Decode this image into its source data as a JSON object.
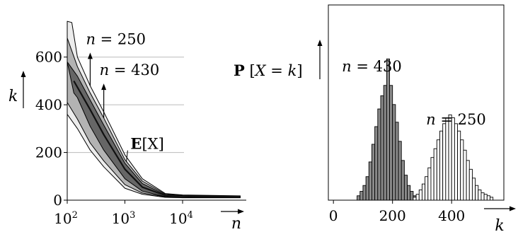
{
  "chart_data": [
    {
      "type": "area",
      "xlabel": "n",
      "ylabel": "k",
      "x_scale": "log",
      "xlim": [
        100,
        120000
      ],
      "ylim": [
        0,
        780
      ],
      "x_ticks": [
        {
          "value": 100,
          "base": "10",
          "exp": "2"
        },
        {
          "value": 1000,
          "base": "10",
          "exp": "3"
        },
        {
          "value": 10000,
          "base": "10",
          "exp": "4"
        }
      ],
      "y_ticks": [
        {
          "value": 0,
          "label": "0"
        },
        {
          "value": 200,
          "label": "200"
        },
        {
          "value": 400,
          "label": "400"
        },
        {
          "value": 600,
          "label": "600"
        }
      ],
      "grid": {
        "y_values": [
          200,
          400,
          600
        ]
      },
      "series": [
        {
          "name": "E[X]",
          "label_bold": "E",
          "label_rest": "[X]",
          "label_at": {
            "x": 1400,
            "y": 250
          },
          "mean": [
            [
              130,
              500
            ],
            [
              250,
              380
            ],
            [
              430,
              275
            ],
            [
              1000,
              130
            ],
            [
              2000,
              55
            ],
            [
              5000,
              20
            ],
            [
              20000,
              15
            ],
            [
              100000,
              15
            ]
          ],
          "bands": [
            {
              "level": "outer",
              "upper": [
                [
                  100,
                  750
                ],
                [
                  120,
                  745
                ],
                [
                  150,
                  600
                ],
                [
                  250,
                  480
                ],
                [
                  430,
                  370
                ],
                [
                  1000,
                  190
                ],
                [
                  2000,
                  90
                ],
                [
                  5000,
                  28
                ],
                [
                  10000,
                  22
                ],
                [
                  100000,
                  18
                ]
              ],
              "lower": [
                [
                  100,
                  360
                ],
                [
                  150,
                  300
                ],
                [
                  250,
                  210
                ],
                [
                  430,
                  140
                ],
                [
                  1000,
                  50
                ],
                [
                  2000,
                  25
                ],
                [
                  5000,
                  12
                ],
                [
                  10000,
                  10
                ],
                [
                  100000,
                  10
                ]
              ]
            },
            {
              "level": "middle",
              "upper": [
                [
                  100,
                  680
                ],
                [
                  150,
                  560
                ],
                [
                  250,
                  450
                ],
                [
                  430,
                  345
                ],
                [
                  1000,
                  170
                ],
                [
                  2000,
                  80
                ],
                [
                  5000,
                  25
                ],
                [
                  10000,
                  20
                ],
                [
                  100000,
                  17
                ]
              ],
              "lower": [
                [
                  100,
                  410
                ],
                [
                  150,
                  340
                ],
                [
                  250,
                  240
                ],
                [
                  430,
                  165
                ],
                [
                  1000,
                  65
                ],
                [
                  2000,
                  30
                ],
                [
                  5000,
                  14
                ],
                [
                  10000,
                  11
                ],
                [
                  100000,
                  11
                ]
              ]
            },
            {
              "level": "inner",
              "upper": [
                [
                  100,
                  580
                ],
                [
                  150,
                  520
                ],
                [
                  250,
                  420
                ],
                [
                  430,
                  315
                ],
                [
                  1000,
                  155
                ],
                [
                  2000,
                  70
                ],
                [
                  5000,
                  22
                ],
                [
                  10000,
                  18
                ],
                [
                  100000,
                  16
                ]
              ],
              "lower": [
                [
                  130,
                  450
                ],
                [
                  150,
                  430
                ],
                [
                  250,
                  310
                ],
                [
                  430,
                  210
                ],
                [
                  1000,
                  90
                ],
                [
                  2000,
                  38
                ],
                [
                  5000,
                  15
                ],
                [
                  10000,
                  12
                ],
                [
                  100000,
                  12
                ]
              ]
            }
          ]
        }
      ],
      "annotations": [
        {
          "text_var": "n",
          "text_rest": " = 250",
          "x": 250,
          "y": 480,
          "at": 610
        },
        {
          "text_var": "n",
          "text_rest": " = 430",
          "x": 430,
          "y": 345,
          "at": 480
        }
      ]
    },
    {
      "type": "bar",
      "title_bold": "P",
      "title_var": "X",
      "title_var2": "k",
      "ylabel": "P[X = k]",
      "xlabel": "k",
      "xlim": [
        -10,
        560
      ],
      "ylim": [
        0,
        1
      ],
      "x_ticks": [
        {
          "value": 0,
          "label": "0"
        },
        {
          "value": 200,
          "label": "200"
        },
        {
          "value": 400,
          "label": "400"
        }
      ],
      "bin_width": 10,
      "series": [
        {
          "name": "n = 430",
          "name_var": "n",
          "name_rest": " = 430",
          "label_at": {
            "x": 130,
            "y": 0.875
          },
          "fill": "#8a8a8a",
          "bins_start": 80,
          "values": [
            0.03,
            0.06,
            0.1,
            0.16,
            0.26,
            0.38,
            0.5,
            0.62,
            0.71,
            0.78,
            0.96,
            0.78,
            0.65,
            0.53,
            0.4,
            0.27,
            0.17,
            0.1,
            0.06,
            0.03
          ]
        },
        {
          "name": "n = 250",
          "name_var": "n",
          "name_rest": " = 250",
          "label_at": {
            "x": 415,
            "y": 0.515
          },
          "fill": "#ffffff",
          "bins_start": 270,
          "values": [
            0.02,
            0.04,
            0.07,
            0.11,
            0.16,
            0.22,
            0.29,
            0.35,
            0.41,
            0.47,
            0.52,
            0.56,
            0.58,
            0.56,
            0.52,
            0.47,
            0.41,
            0.34,
            0.27,
            0.21,
            0.15,
            0.1,
            0.07,
            0.05,
            0.04,
            0.03,
            0.02
          ]
        }
      ]
    }
  ]
}
